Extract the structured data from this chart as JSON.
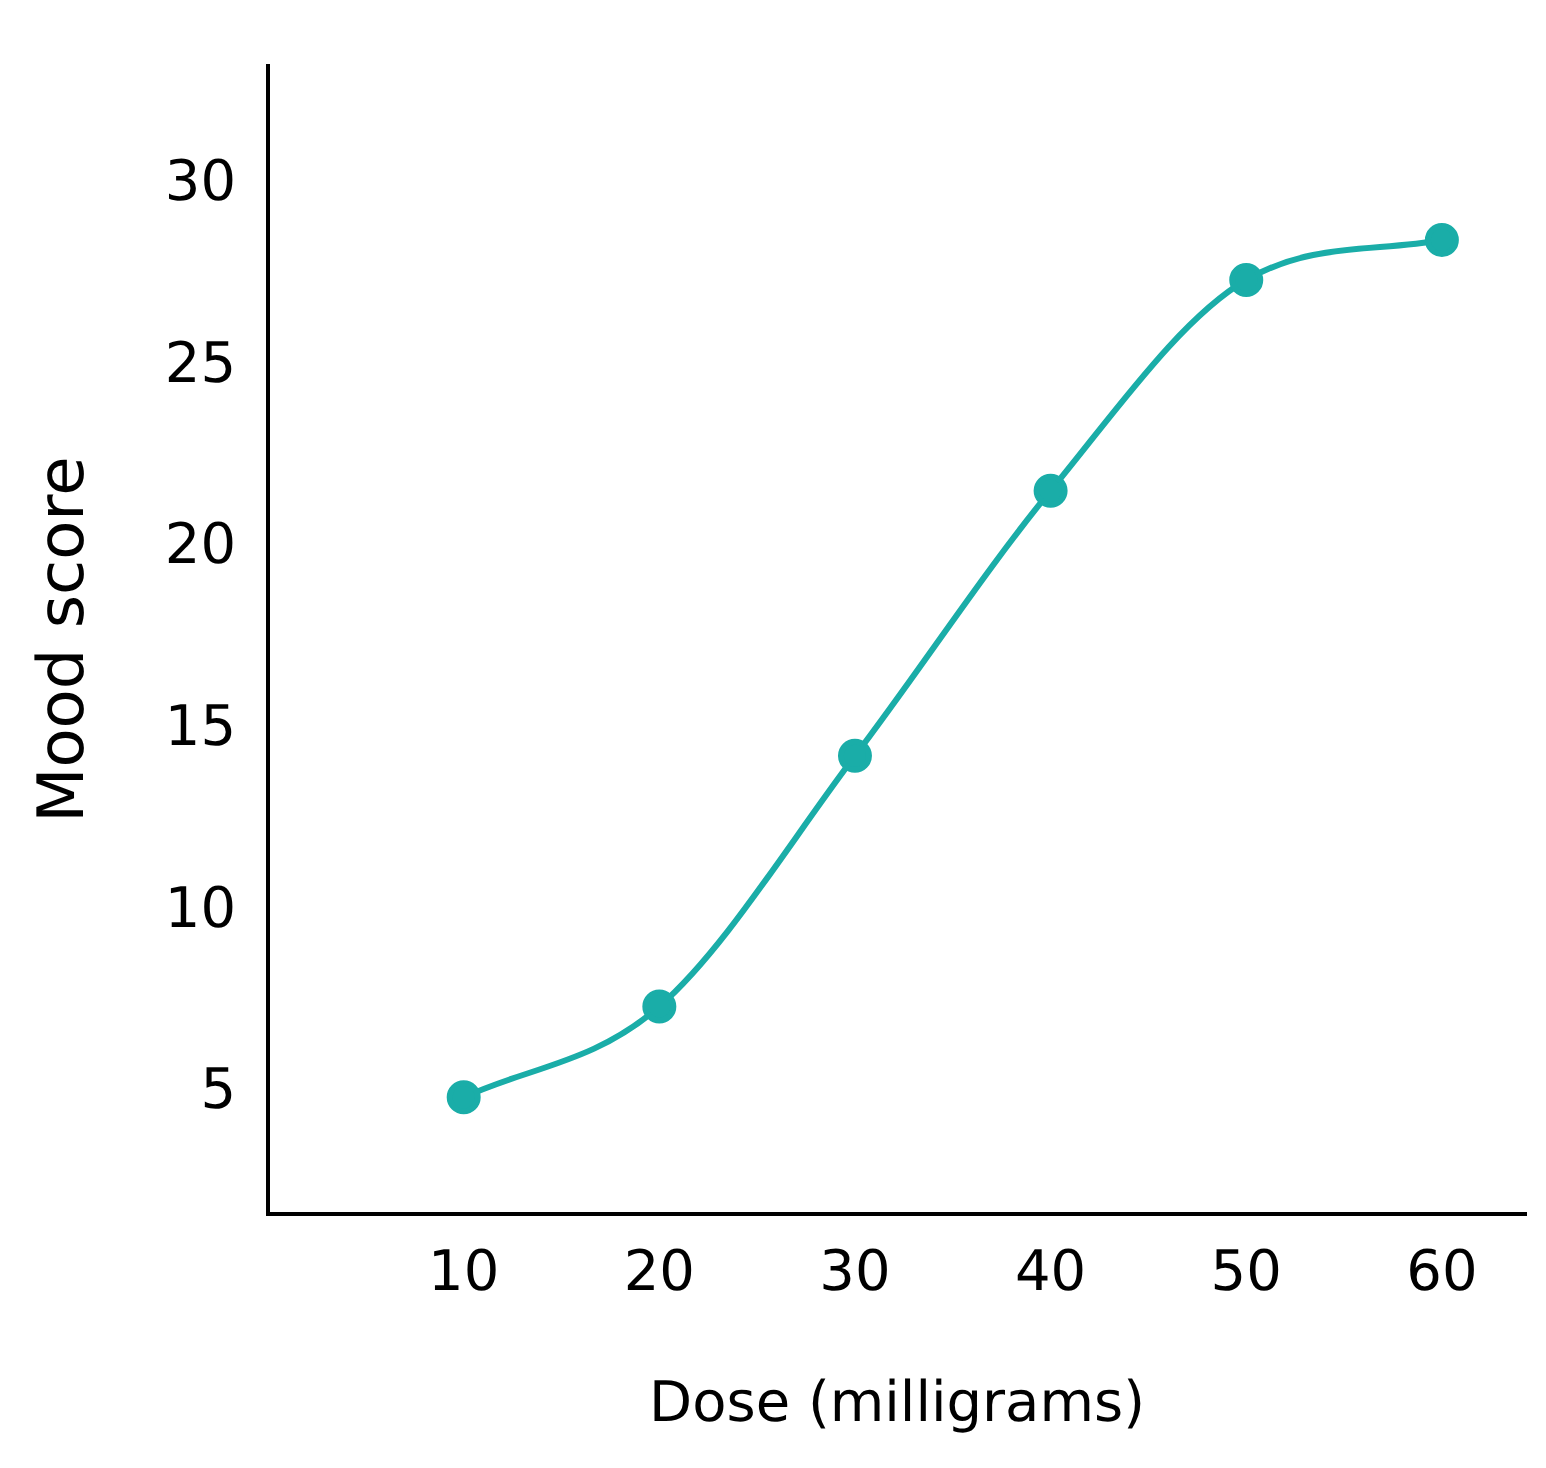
{
  "chart_data": {
    "type": "line",
    "xlabel": "Dose (milligrams)",
    "ylabel": "Mood score",
    "x": [
      10,
      20,
      30,
      40,
      50,
      60
    ],
    "series": [
      {
        "color": "#1aada8",
        "values": [
          4.9,
          7.4,
          14.3,
          21.6,
          27.4,
          28.5
        ]
      }
    ],
    "xlim": [
      0,
      64.3
    ],
    "xticks": [
      10,
      20,
      30,
      40,
      50,
      60
    ],
    "ylim": [
      1.7,
      33.3
    ],
    "yticks": [
      5,
      10,
      15,
      20,
      25,
      30
    ],
    "grid": false,
    "legend": false,
    "marker": "circle",
    "line_style": "solid"
  }
}
